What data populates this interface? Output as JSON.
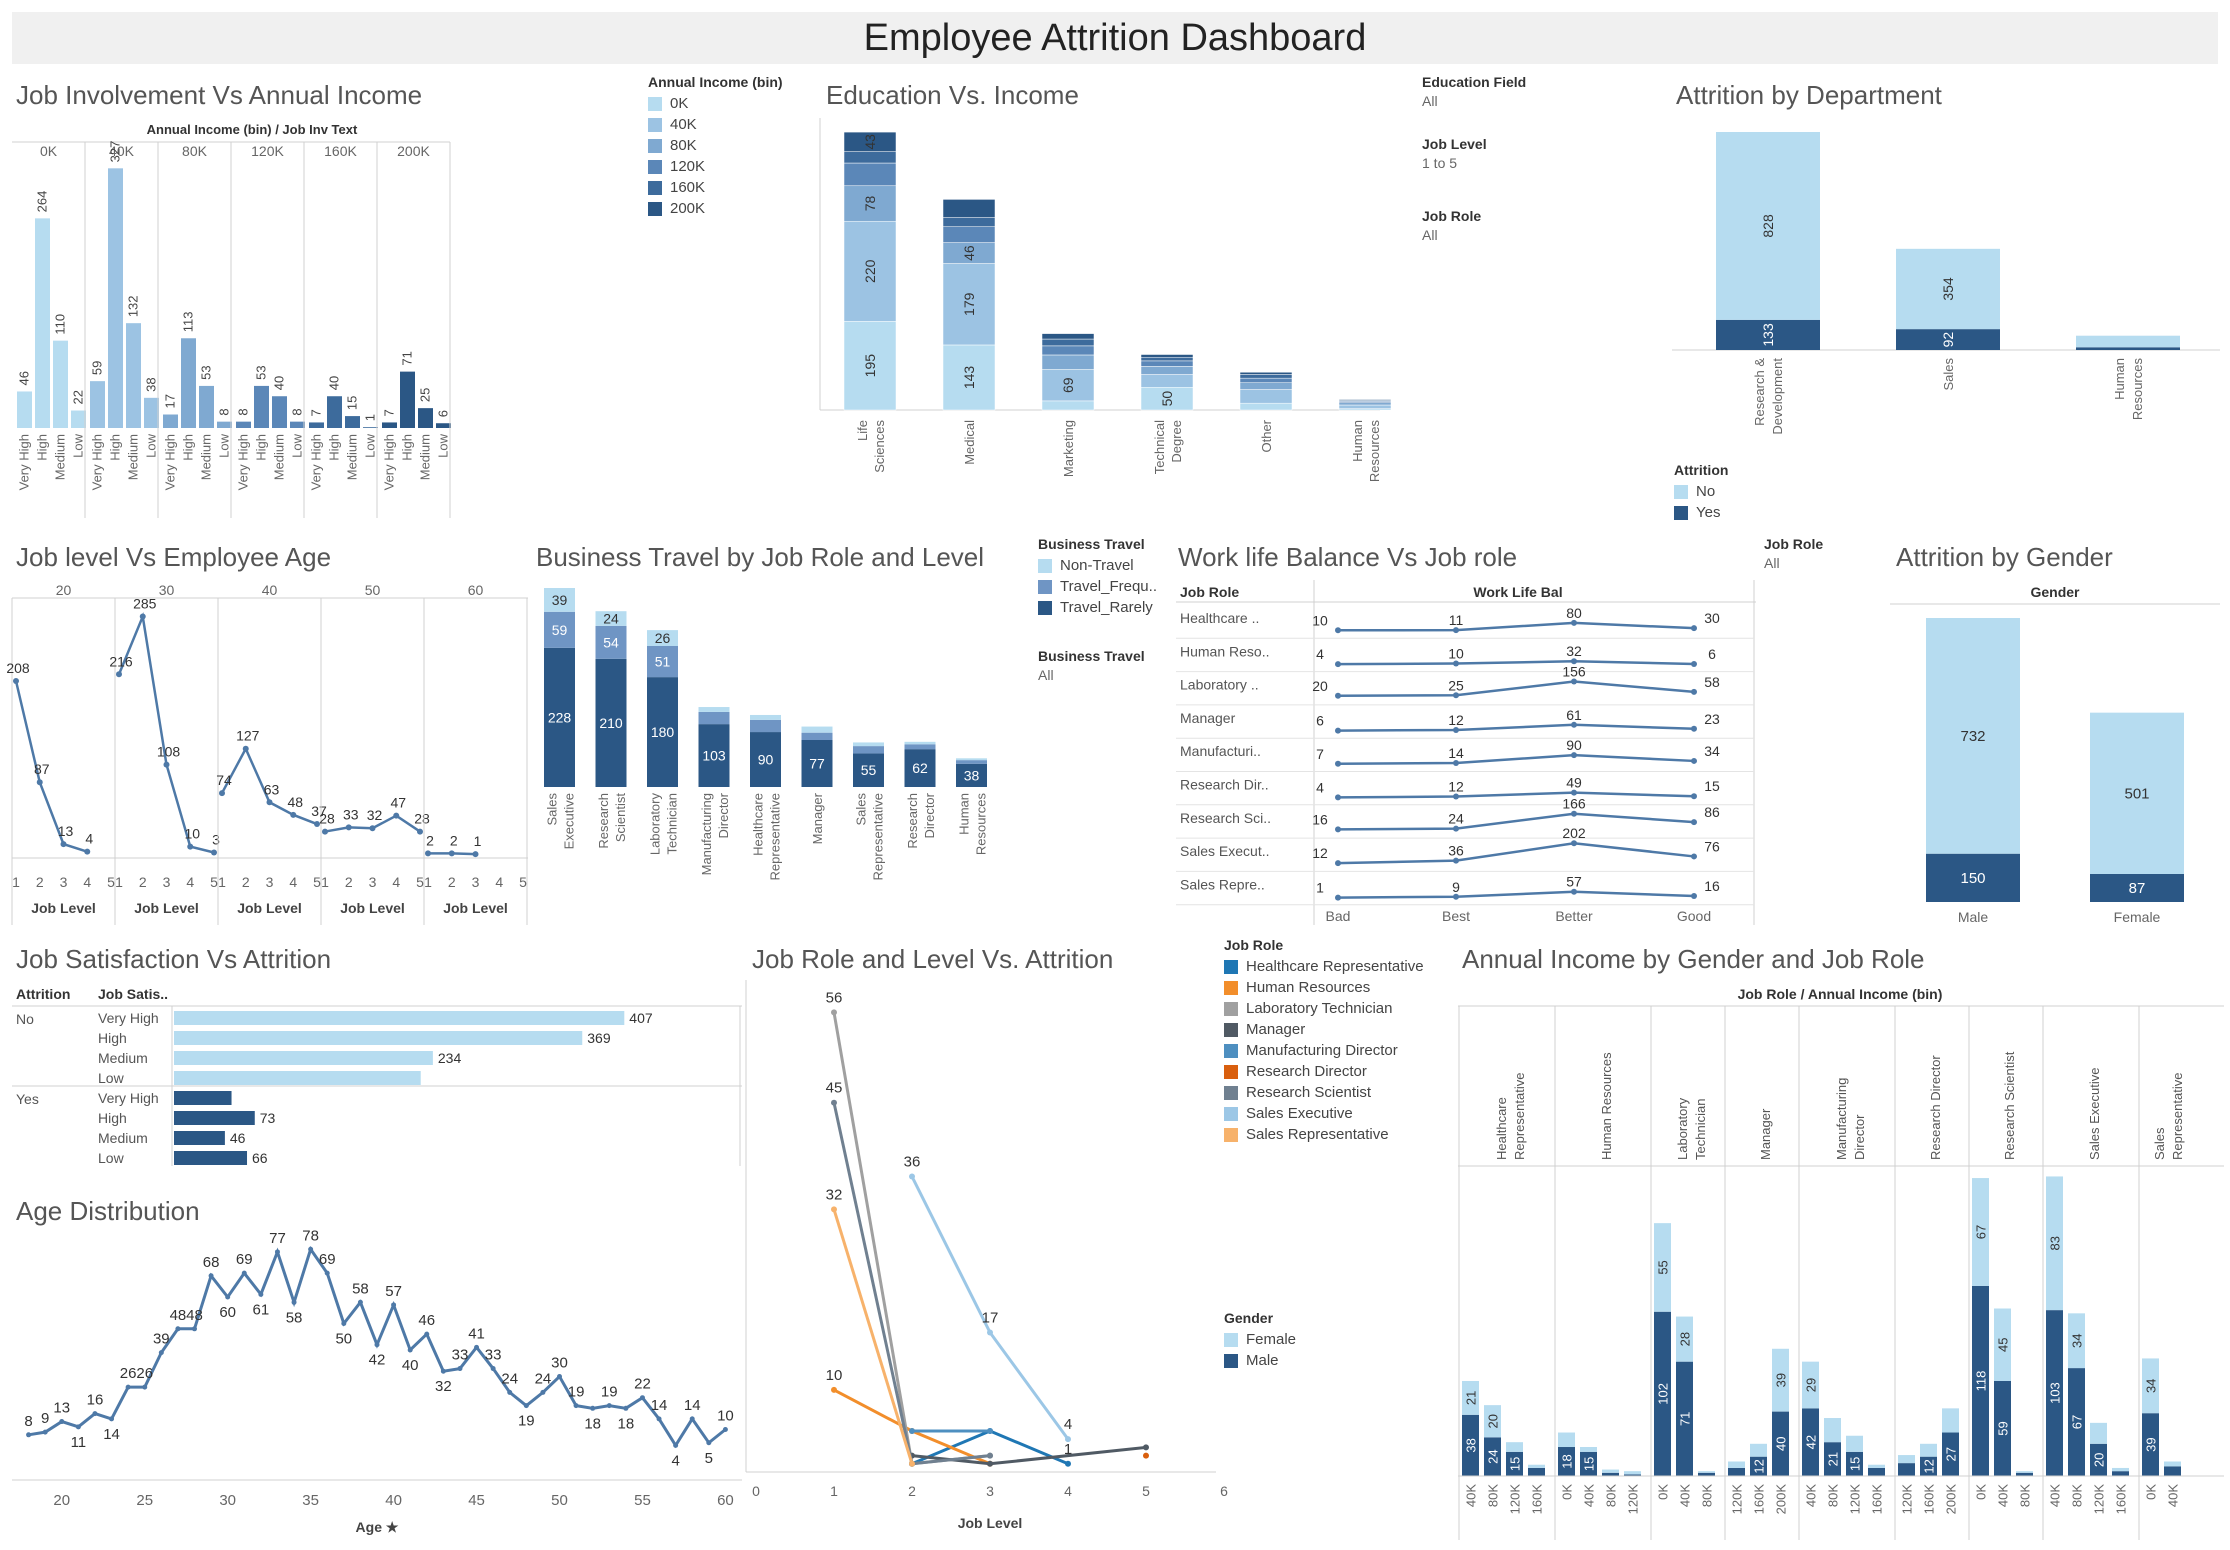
{
  "dashboard": {
    "title": "Employee Attrition Dashboard"
  },
  "colors": {
    "light": "#b6dcf0",
    "l2": "#9cc3e3",
    "l3": "#7fa9d1",
    "l4": "#5b87b8",
    "l5": "#3d6b9c",
    "dark": "#2b5785",
    "line": "#4e79a7",
    "grid": "#d0d0d0",
    "roles": [
      "#1f77b4",
      "#f28e2b",
      "#a0a0a0",
      "#505a64",
      "#4e8fc0",
      "#d95f0e",
      "#708090",
      "#9cc7e6",
      "#f7b26b"
    ]
  },
  "panels": {
    "job_inv": {
      "title": "Job Involvement Vs Annual Income",
      "header": "Annual Income (bin)  /  Job Inv Text"
    },
    "edu": {
      "title": "Education Vs. Income"
    },
    "dept": {
      "title": "Attrition by Department"
    },
    "joblevel_age": {
      "title": "Job level Vs Employee Age",
      "xlabel": "Job Level"
    },
    "travel": {
      "title": "Business Travel by Job Role and Level"
    },
    "wlb": {
      "title": "Work life Balance Vs Job role",
      "row_header": "Job Role",
      "col_header": "Work Life Bal"
    },
    "gender": {
      "title": "Attrition by Gender",
      "header": "Gender"
    },
    "jobsat": {
      "title": "Job Satisfaction Vs Attrition",
      "h1": "Attrition",
      "h2": "Job Satis.."
    },
    "role_level": {
      "title": "Job Role and Level Vs. Attrition",
      "xlabel": "Job Level"
    },
    "income_gender": {
      "title": "Annual Income by Gender and Job Role",
      "header": "Job Role  /  Annual Income (bin)"
    },
    "age": {
      "title": "Age Distribution",
      "xlabel": "Age ★"
    }
  },
  "legends": {
    "income_bin": {
      "title": "Annual Income (bin)",
      "items": [
        "0K",
        "40K",
        "80K",
        "120K",
        "160K",
        "200K"
      ]
    },
    "attrition": {
      "title": "Attrition",
      "items": [
        "No",
        "Yes"
      ]
    },
    "travel": {
      "title": "Business Travel",
      "items": [
        "Non-Travel",
        "Travel_Frequ..",
        "Travel_Rarely"
      ]
    },
    "job_role": {
      "title": "Job Role",
      "items": [
        "Healthcare Representative",
        "Human Resources",
        "Laboratory Technician",
        "Manager",
        "Manufacturing Director",
        "Research Director",
        "Research Scientist",
        "Sales Executive",
        "Sales Representative"
      ]
    },
    "gender": {
      "title": "Gender",
      "items": [
        "Female",
        "Male"
      ]
    }
  },
  "filters": [
    {
      "label": "Education Field",
      "value": "All"
    },
    {
      "label": "Job Level",
      "value": "1 to 5"
    },
    {
      "label": "Job Role",
      "value": "All"
    }
  ],
  "filter_travel": {
    "label": "Business Travel",
    "value": "All"
  },
  "filter_role2": {
    "label": "Job Role",
    "value": "All"
  },
  "chart_data": [
    {
      "id": "job_inv",
      "type": "bar",
      "groups": [
        "0K",
        "40K",
        "80K",
        "120K",
        "160K",
        "200K"
      ],
      "categories": [
        "Very High",
        "High",
        "Medium",
        "Low"
      ],
      "values": [
        [
          46,
          264,
          110,
          22
        ],
        [
          59,
          327,
          132,
          38
        ],
        [
          17,
          113,
          53,
          8
        ],
        [
          8,
          53,
          40,
          8
        ],
        [
          7,
          40,
          15,
          1
        ],
        [
          7,
          71,
          25,
          6
        ]
      ]
    },
    {
      "id": "edu",
      "type": "bar",
      "stacked": true,
      "categories": [
        "Life Sciences",
        "Medical",
        "Marketing",
        "Technical Degree",
        "Other",
        "Human Resources"
      ],
      "series_names": [
        "0K",
        "40K",
        "80K",
        "120K",
        "160K",
        "200K"
      ],
      "values": [
        [
          195,
          220,
          78,
          50,
          25,
          43
        ],
        [
          143,
          179,
          46,
          35,
          20,
          40
        ],
        [
          20,
          69,
          32,
          20,
          15,
          12
        ],
        [
          50,
          28,
          18,
          12,
          8,
          6
        ],
        [
          15,
          30,
          15,
          10,
          8,
          5
        ],
        [
          3,
          8,
          5,
          3,
          2,
          2
        ]
      ],
      "labels": [
        [
          195,
          220,
          78,
          null,
          null,
          43
        ],
        [
          143,
          179,
          46,
          null,
          null,
          null
        ],
        [
          null,
          69,
          null,
          null,
          null,
          null
        ],
        [
          50,
          null,
          null,
          null,
          null,
          null
        ],
        [],
        []
      ]
    },
    {
      "id": "dept",
      "type": "bar",
      "stacked": true,
      "categories": [
        "Research & Development",
        "Sales",
        "Human Resources"
      ],
      "no": [
        828,
        354,
        51
      ],
      "yes": [
        133,
        92,
        12
      ]
    },
    {
      "id": "joblevel_age",
      "type": "line",
      "groups": [
        "20",
        "30",
        "40",
        "50",
        "60"
      ],
      "x": [
        1,
        2,
        3,
        4,
        5
      ],
      "values": [
        [
          208,
          87,
          13,
          4,
          null
        ],
        [
          216,
          285,
          108,
          10,
          3
        ],
        [
          74,
          127,
          63,
          48,
          37
        ],
        [
          28,
          33,
          32,
          47,
          28
        ],
        [
          2,
          2,
          1,
          null,
          null
        ]
      ]
    },
    {
      "id": "travel",
      "type": "bar",
      "stacked": true,
      "categories": [
        "Sales Executive",
        "Research Scientist",
        "Laboratory Technician",
        "Manufacturing Director",
        "Healthcare Representative",
        "Manager",
        "Sales Representative",
        "Research Director",
        "Human Resources"
      ],
      "series": [
        {
          "name": "Travel_Rarely",
          "values": [
            228,
            210,
            180,
            103,
            90,
            77,
            55,
            62,
            38
          ]
        },
        {
          "name": "Travel_Frequ..",
          "values": [
            59,
            54,
            51,
            20,
            20,
            12,
            12,
            8,
            6
          ]
        },
        {
          "name": "Non-Travel",
          "values": [
            39,
            24,
            26,
            8,
            8,
            10,
            6,
            4,
            3
          ]
        }
      ]
    },
    {
      "id": "wlb",
      "type": "line",
      "rows": [
        "Healthcare ..",
        "Human Reso..",
        "Laboratory ..",
        "Manager",
        "Manufacturi..",
        "Research Dir..",
        "Research Sci..",
        "Sales Execut..",
        "Sales Repre.."
      ],
      "x": [
        "Bad",
        "Best",
        "Better",
        "Good"
      ],
      "values": [
        [
          10,
          11,
          80,
          30
        ],
        [
          4,
          10,
          32,
          6
        ],
        [
          20,
          25,
          156,
          58
        ],
        [
          6,
          12,
          61,
          23
        ],
        [
          7,
          14,
          90,
          34
        ],
        [
          4,
          12,
          49,
          15
        ],
        [
          16,
          24,
          166,
          86
        ],
        [
          12,
          36,
          202,
          76
        ],
        [
          1,
          9,
          57,
          16
        ]
      ]
    },
    {
      "id": "gender",
      "type": "bar",
      "stacked": true,
      "categories": [
        "Male",
        "Female"
      ],
      "no": [
        732,
        501
      ],
      "yes": [
        150,
        87
      ]
    },
    {
      "id": "jobsat",
      "type": "bar",
      "groups": [
        "No",
        "Yes"
      ],
      "categories": [
        "Very High",
        "High",
        "Medium",
        "Low"
      ],
      "values": [
        [
          407,
          369,
          234,
          223
        ],
        [
          52,
          73,
          46,
          66
        ]
      ],
      "labels": [
        [
          407,
          369,
          234,
          null
        ],
        [
          null,
          73,
          46,
          66
        ]
      ]
    },
    {
      "id": "role_level",
      "type": "line",
      "x": [
        1,
        2,
        3,
        4,
        5
      ],
      "xticks": [
        0,
        1,
        2,
        3,
        4,
        5,
        6
      ],
      "series": [
        {
          "name": "Healthcare Representative",
          "values": [
            null,
            1,
            5,
            1,
            null
          ]
        },
        {
          "name": "Human Resources",
          "values": [
            10,
            5,
            1,
            null,
            null
          ]
        },
        {
          "name": "Laboratory Technician",
          "values": [
            56,
            1,
            2,
            null,
            null
          ]
        },
        {
          "name": "Manager",
          "values": [
            null,
            2,
            1,
            null,
            3
          ]
        },
        {
          "name": "Manufacturing Director",
          "values": [
            null,
            5,
            5,
            null,
            null
          ]
        },
        {
          "name": "Research Director",
          "values": [
            null,
            null,
            null,
            null,
            2
          ]
        },
        {
          "name": "Research Scientist",
          "values": [
            45,
            1,
            2,
            null,
            null
          ]
        },
        {
          "name": "Sales Executive",
          "values": [
            null,
            36,
            17,
            4,
            null
          ]
        },
        {
          "name": "Sales Representative",
          "values": [
            32,
            1,
            null,
            null,
            null
          ]
        }
      ]
    },
    {
      "id": "income_gender",
      "type": "bar",
      "stacked": true,
      "groups": [
        {
          "role": "Healthcare Representative",
          "bins": [
            "40K",
            "80K",
            "120K",
            "160K"
          ],
          "male": [
            38,
            24,
            15,
            5
          ],
          "female": [
            21,
            20,
            6,
            2
          ]
        },
        {
          "role": "Human Resources",
          "bins": [
            "0K",
            "40K",
            "80K",
            "120K"
          ],
          "male": [
            18,
            15,
            2,
            1
          ],
          "female": [
            9,
            3,
            2,
            2
          ]
        },
        {
          "role": "Laboratory Technician",
          "bins": [
            "0K",
            "40K",
            "80K"
          ],
          "male": [
            102,
            71,
            2
          ],
          "female": [
            55,
            28,
            1
          ]
        },
        {
          "role": "Manager",
          "bins": [
            "120K",
            "160K",
            "200K"
          ],
          "male": [
            5,
            12,
            40
          ],
          "female": [
            4,
            8,
            39
          ]
        },
        {
          "role": "Manufacturing Director",
          "bins": [
            "40K",
            "80K",
            "120K",
            "160K"
          ],
          "male": [
            42,
            21,
            15,
            5
          ],
          "female": [
            29,
            15,
            10,
            2
          ]
        },
        {
          "role": "Research Director",
          "bins": [
            "120K",
            "160K",
            "200K"
          ],
          "male": [
            8,
            12,
            27
          ],
          "female": [
            5,
            8,
            15
          ]
        },
        {
          "role": "Research Scientist",
          "bins": [
            "0K",
            "40K",
            "80K"
          ],
          "male": [
            118,
            59,
            2
          ],
          "female": [
            67,
            45,
            1
          ]
        },
        {
          "role": "Sales Executive",
          "bins": [
            "40K",
            "80K",
            "120K",
            "160K"
          ],
          "male": [
            103,
            67,
            20,
            3
          ],
          "female": [
            83,
            34,
            13,
            2
          ]
        },
        {
          "role": "Sales Representative",
          "bins": [
            "0K",
            "40K"
          ],
          "male": [
            39,
            6
          ],
          "female": [
            34,
            3
          ]
        }
      ],
      "labels_shown": {
        "male": [
          "38",
          "24",
          "15",
          "18",
          "15",
          "102",
          "71",
          "12",
          "40",
          "21",
          "15",
          "27",
          "118",
          "59",
          "103",
          "67",
          "20",
          "13",
          "39"
        ],
        "female": [
          "21",
          "20",
          "9",
          "55",
          "28",
          "29",
          "39",
          "67",
          "45",
          "83",
          "34",
          "34"
        ]
      }
    },
    {
      "id": "age",
      "type": "line",
      "x": [
        18,
        19,
        20,
        21,
        22,
        23,
        24,
        25,
        26,
        27,
        28,
        29,
        30,
        31,
        32,
        33,
        34,
        35,
        36,
        37,
        38,
        39,
        40,
        41,
        42,
        43,
        44,
        45,
        46,
        47,
        48,
        49,
        50,
        51,
        52,
        53,
        54,
        55,
        56,
        57,
        58,
        59,
        60
      ],
      "values": [
        8,
        9,
        13,
        11,
        16,
        14,
        26,
        26,
        39,
        48,
        48,
        68,
        60,
        69,
        61,
        77,
        58,
        78,
        69,
        50,
        58,
        42,
        57,
        40,
        46,
        32,
        33,
        41,
        33,
        24,
        19,
        24,
        30,
        19,
        18,
        19,
        18,
        22,
        14,
        4,
        14,
        5,
        10
      ],
      "xticks": [
        20,
        25,
        30,
        35,
        40,
        45,
        50,
        55,
        60
      ]
    }
  ]
}
